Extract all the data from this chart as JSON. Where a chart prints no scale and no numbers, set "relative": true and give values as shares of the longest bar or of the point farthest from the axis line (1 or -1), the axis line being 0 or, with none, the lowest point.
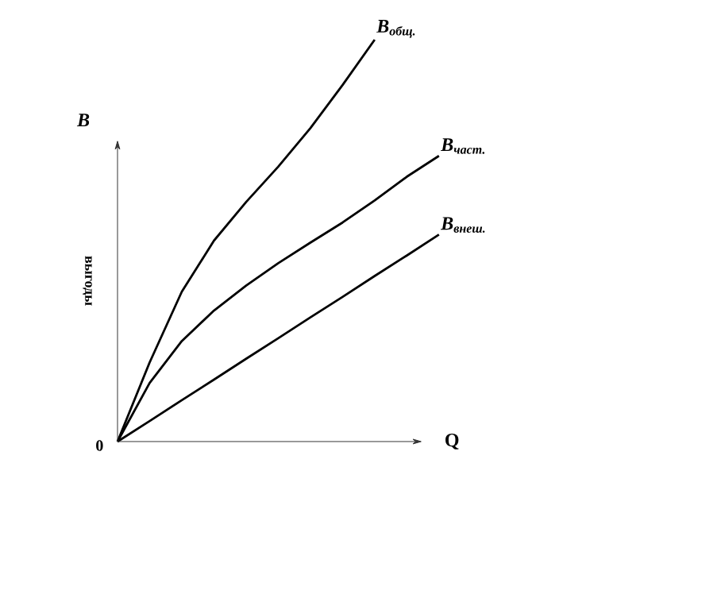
{
  "chart_data": {
    "type": "line",
    "relative": true,
    "xlabel": "Q",
    "ylabel": "выгоды",
    "legend": false,
    "marker": "none",
    "line_style": "solid",
    "annotations": [
      "B",
      "0"
    ],
    "categories": [
      null,
      null,
      null,
      null,
      null,
      null,
      null,
      null,
      null,
      null,
      null
    ],
    "series": [
      {
        "name": "B$_{общ.}$",
        "color": "#000000",
        "values": [
          0,
          0.197,
          0.373,
          0.5,
          0.596,
          0.684,
          0.78,
          0.887,
          1.0,
          null,
          null
        ]
      },
      {
        "name": "B$_{част.}$",
        "color": "#000000",
        "values": [
          0,
          0.146,
          0.25,
          0.326,
          0.388,
          0.444,
          0.495,
          0.545,
          0.6,
          0.659,
          0.711
        ]
      },
      {
        "name": "B$_{внеш.}$",
        "color": "#000000",
        "values": [
          0,
          0.051,
          0.103,
          0.154,
          0.206,
          0.257,
          0.309,
          0.36,
          0.412,
          0.463,
          0.515
        ]
      }
    ]
  }
}
